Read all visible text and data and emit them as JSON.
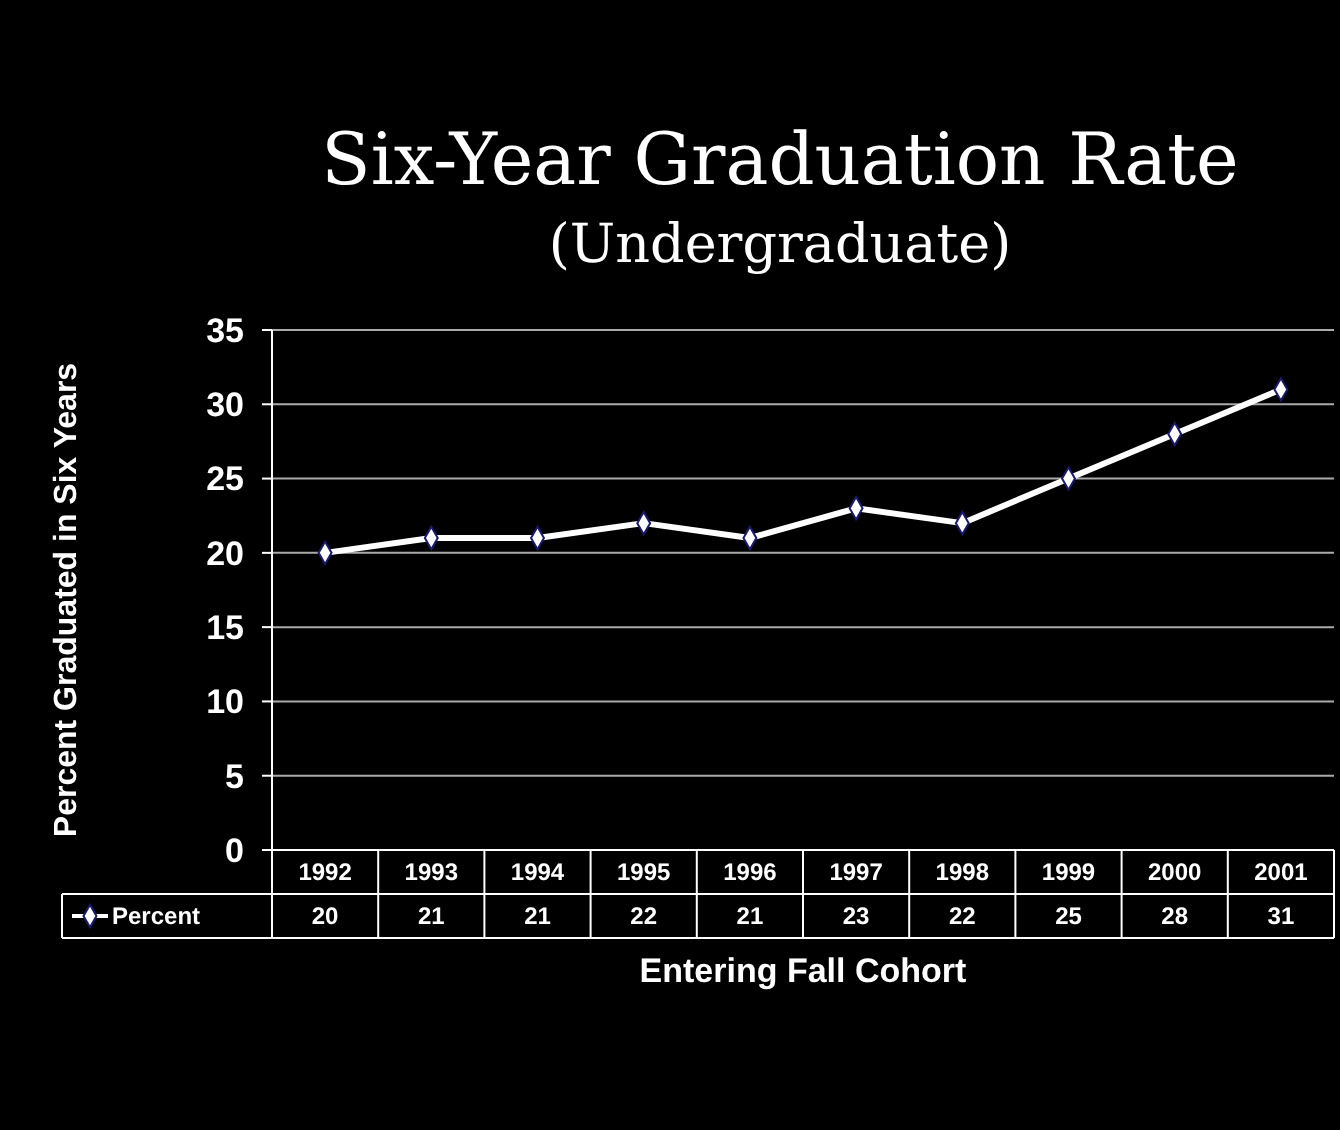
{
  "chart_data": {
    "type": "line",
    "title": "Six-Year Graduation Rate",
    "subtitle": "(Undergraduate)",
    "xlabel": "Entering Fall Cohort",
    "ylabel": "Percent Graduated in Six Years",
    "categories": [
      "1992",
      "1993",
      "1994",
      "1995",
      "1996",
      "1997",
      "1998",
      "1999",
      "2000",
      "2001"
    ],
    "series": [
      {
        "name": "Percent",
        "color": "#ffffff",
        "values": [
          20,
          21,
          21,
          22,
          21,
          23,
          22,
          25,
          28,
          31
        ]
      }
    ],
    "ylim": [
      0,
      35
    ],
    "yticks": [
      0,
      5,
      10,
      15,
      20,
      25,
      30,
      35
    ],
    "grid": "y",
    "marker": "diamond",
    "line_style": "solid",
    "data_labels": true,
    "legend": "bottom left"
  }
}
